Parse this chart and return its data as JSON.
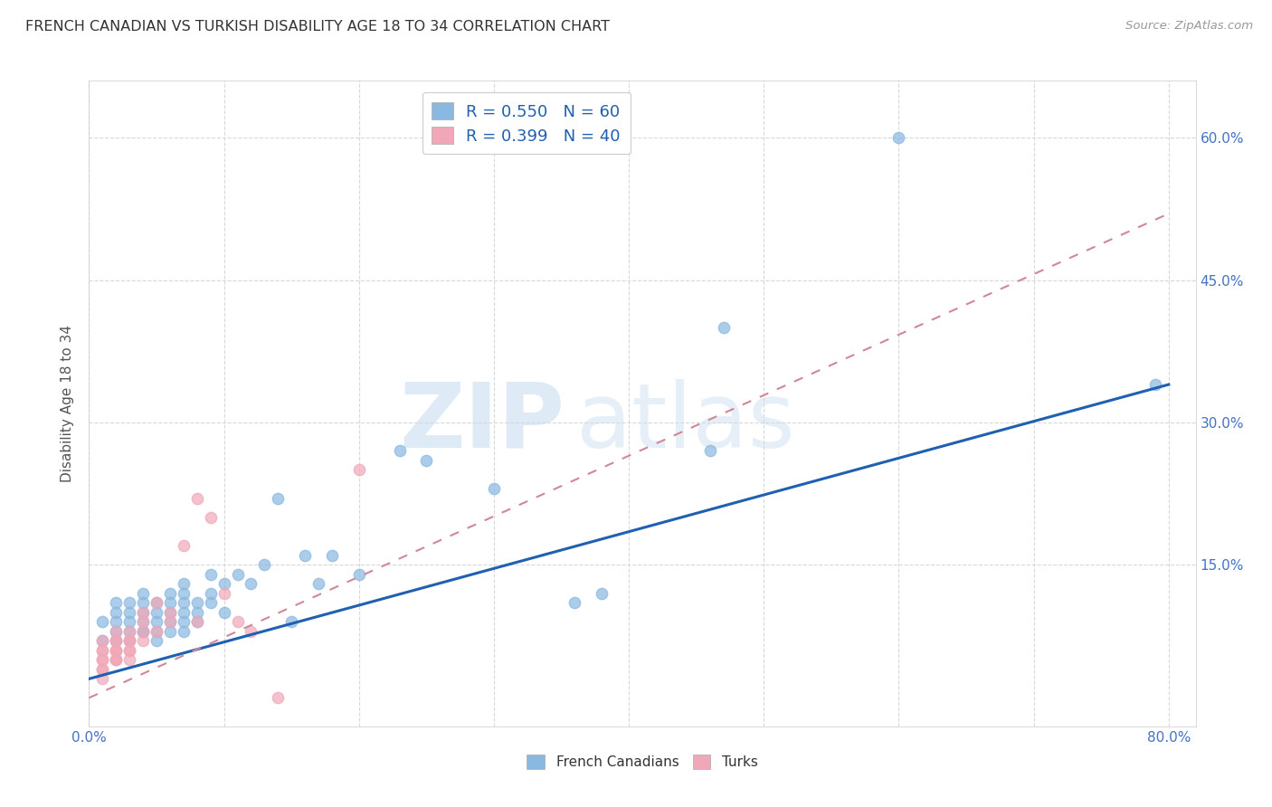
{
  "title": "FRENCH CANADIAN VS TURKISH DISABILITY AGE 18 TO 34 CORRELATION CHART",
  "source": "Source: ZipAtlas.com",
  "ylabel": "Disability Age 18 to 34",
  "xlim": [
    0.0,
    0.82
  ],
  "ylim": [
    -0.02,
    0.66
  ],
  "xticks": [
    0.0,
    0.1,
    0.2,
    0.3,
    0.4,
    0.5,
    0.6,
    0.7,
    0.8
  ],
  "ytick_positions": [
    0.15,
    0.3,
    0.45,
    0.6
  ],
  "ytick_labels": [
    "15.0%",
    "30.0%",
    "45.0%",
    "60.0%"
  ],
  "legend_r1": "R = 0.550",
  "legend_n1": "N = 60",
  "legend_r2": "R = 0.399",
  "legend_n2": "N = 40",
  "blue_color": "#89b8e0",
  "pink_color": "#f0a8b8",
  "trendline_blue": "#2060b0",
  "trendline_pink_dashed": "#d08898",
  "fc_scatter_x": [
    0.01,
    0.01,
    0.02,
    0.02,
    0.02,
    0.02,
    0.02,
    0.03,
    0.03,
    0.03,
    0.03,
    0.03,
    0.04,
    0.04,
    0.04,
    0.04,
    0.04,
    0.04,
    0.05,
    0.05,
    0.05,
    0.05,
    0.05,
    0.06,
    0.06,
    0.06,
    0.06,
    0.06,
    0.07,
    0.07,
    0.07,
    0.07,
    0.07,
    0.07,
    0.08,
    0.08,
    0.08,
    0.09,
    0.09,
    0.09,
    0.1,
    0.1,
    0.11,
    0.12,
    0.13,
    0.14,
    0.15,
    0.16,
    0.17,
    0.18,
    0.2,
    0.23,
    0.25,
    0.3,
    0.36,
    0.38,
    0.46,
    0.47,
    0.6,
    0.79
  ],
  "fc_scatter_y": [
    0.07,
    0.09,
    0.08,
    0.09,
    0.1,
    0.11,
    0.07,
    0.09,
    0.1,
    0.08,
    0.11,
    0.07,
    0.08,
    0.1,
    0.09,
    0.11,
    0.12,
    0.08,
    0.09,
    0.1,
    0.11,
    0.07,
    0.08,
    0.1,
    0.09,
    0.11,
    0.12,
    0.08,
    0.1,
    0.11,
    0.09,
    0.13,
    0.12,
    0.08,
    0.11,
    0.1,
    0.09,
    0.12,
    0.14,
    0.11,
    0.13,
    0.1,
    0.14,
    0.13,
    0.15,
    0.22,
    0.09,
    0.16,
    0.13,
    0.16,
    0.14,
    0.27,
    0.26,
    0.23,
    0.11,
    0.12,
    0.27,
    0.4,
    0.6,
    0.34
  ],
  "turk_scatter_x": [
    0.01,
    0.01,
    0.01,
    0.01,
    0.01,
    0.01,
    0.01,
    0.01,
    0.02,
    0.02,
    0.02,
    0.02,
    0.02,
    0.02,
    0.02,
    0.02,
    0.02,
    0.03,
    0.03,
    0.03,
    0.03,
    0.03,
    0.03,
    0.04,
    0.04,
    0.04,
    0.04,
    0.05,
    0.05,
    0.06,
    0.06,
    0.07,
    0.08,
    0.08,
    0.09,
    0.1,
    0.11,
    0.12,
    0.14,
    0.2
  ],
  "turk_scatter_y": [
    0.04,
    0.05,
    0.06,
    0.07,
    0.05,
    0.04,
    0.06,
    0.03,
    0.05,
    0.06,
    0.07,
    0.05,
    0.06,
    0.07,
    0.08,
    0.06,
    0.05,
    0.06,
    0.07,
    0.08,
    0.06,
    0.07,
    0.05,
    0.07,
    0.08,
    0.09,
    0.1,
    0.08,
    0.11,
    0.09,
    0.1,
    0.17,
    0.09,
    0.22,
    0.2,
    0.12,
    0.09,
    0.08,
    0.01,
    0.25
  ],
  "fc_trend_x": [
    0.0,
    0.8
  ],
  "fc_trend_y": [
    0.03,
    0.34
  ],
  "turk_trend_x": [
    0.0,
    0.8
  ],
  "turk_trend_y": [
    0.01,
    0.52
  ],
  "watermark_zip": "ZIP",
  "watermark_atlas": "atlas",
  "bg_color": "#ffffff",
  "grid_color": "#d8d8d8"
}
